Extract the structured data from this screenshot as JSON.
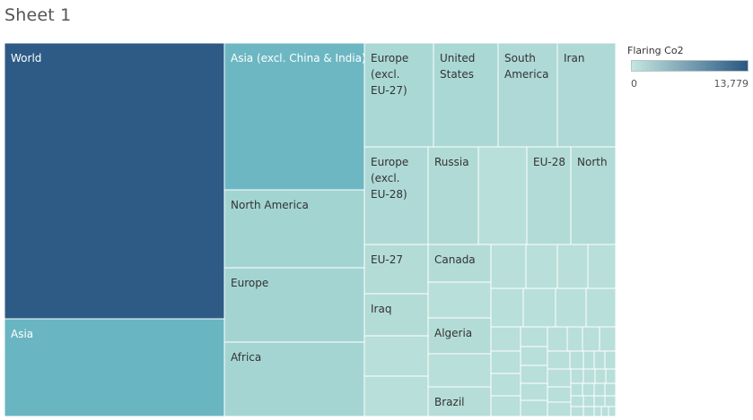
{
  "sheet_title": "Sheet 1",
  "legend": {
    "title": "Flaring Co2",
    "min_label": "0",
    "max_label": "13,779",
    "color_low": "#c4e6e0",
    "color_high": "#2a5783"
  },
  "chart_data": {
    "type": "treemap",
    "title": "Sheet 1",
    "measure": "Flaring Co2",
    "color_range": [
      0,
      13779
    ],
    "items": [
      {
        "label": "World",
        "value": 13779,
        "color": "#2d5b86"
      },
      {
        "label": "Asia",
        "value": 4400,
        "color": "#6ab5c2"
      },
      {
        "label": "Asia (excl. China & India)",
        "value": 4300,
        "color": "#6db7c3"
      },
      {
        "label": "North America",
        "value": 2000,
        "color": "#a2d4d2"
      },
      {
        "label": "Europe",
        "value": 1900,
        "color": "#a3d4d2"
      },
      {
        "label": "Africa",
        "value": 1900,
        "color": "#a4d5d3"
      },
      {
        "label": "Europe (excl. EU-27)",
        "value": 1050,
        "color": "#aad9d5"
      },
      {
        "label": "United States",
        "value": 1050,
        "color": "#aad9d5"
      },
      {
        "label": "South America",
        "value": 850,
        "color": "#aed9d6"
      },
      {
        "label": "Iran",
        "value": 850,
        "color": "#aed9d6"
      },
      {
        "label": "Europe (excl. EU-28)",
        "value": 900,
        "color": "#aed9d6"
      },
      {
        "label": "Russia",
        "value": 800,
        "color": "#b0dad6"
      },
      {
        "label": "EU-28",
        "value": 650,
        "color": "#b2dbd7"
      },
      {
        "label": "North",
        "value": 650,
        "color": "#b2dbd7"
      },
      {
        "label": "EU-27",
        "value": 450,
        "color": "#b4dcd7"
      },
      {
        "label": "Canada",
        "value": 450,
        "color": "#b4dcd7"
      },
      {
        "label": "Iraq",
        "value": 500,
        "color": "#b4dcd7"
      },
      {
        "label": "Algeria",
        "value": 450,
        "color": "#b4dcd7"
      },
      {
        "label": "Brazil",
        "value": 300,
        "color": "#b6ddd8"
      }
    ]
  }
}
